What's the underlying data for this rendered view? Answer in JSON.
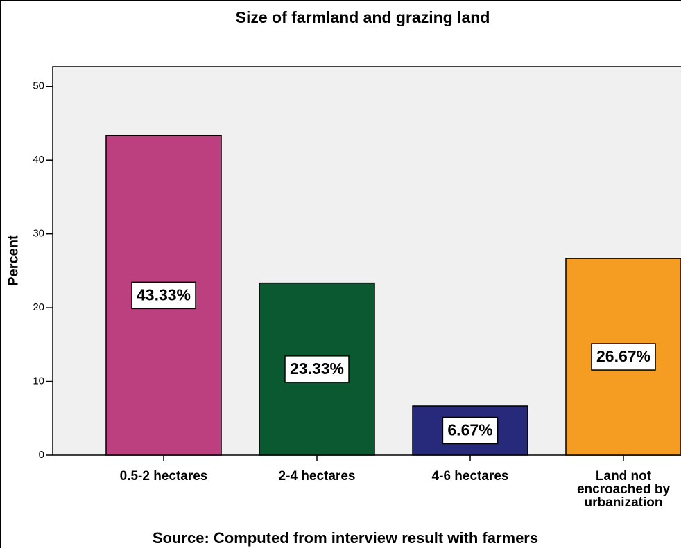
{
  "chart_data": {
    "type": "bar",
    "title": "Size of farmland and grazing land",
    "source": "Source: Computed from interview result with farmers",
    "ylabel": "Percent",
    "categories": [
      "0.5-2 hectares",
      "2-4 hectares",
      "4-6 hectares",
      "Land not encroached by urbanization"
    ],
    "values": [
      43.33,
      23.33,
      6.67,
      26.67
    ],
    "value_labels": [
      "43.33%",
      "23.33%",
      "6.67%",
      "26.67%"
    ],
    "colors": [
      "#bc4080",
      "#0b5930",
      "#272a7a",
      "#f59c22"
    ],
    "ylim": [
      0,
      52.7
    ],
    "yticks": [
      0,
      10,
      20,
      30,
      40,
      50
    ]
  }
}
